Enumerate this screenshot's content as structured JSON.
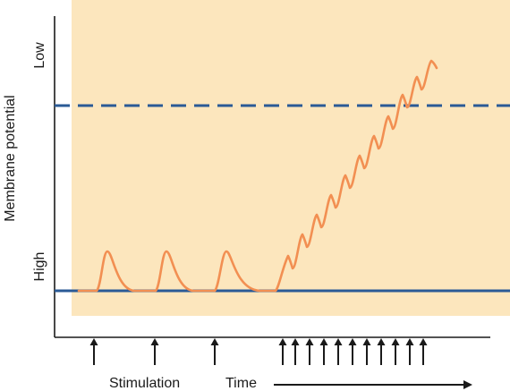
{
  "y_axis": {
    "label": "Membrane potential",
    "top_label": "Low",
    "bottom_label": "High"
  },
  "x_axis": {
    "stimulation_label": "Stimulation",
    "time_label": "Time"
  },
  "colors": {
    "background_panel": "#fce6bd",
    "trace": "#f28f52",
    "resting_line": "#2a5a96",
    "threshold_line": "#2a5a96",
    "axis": "#1a1a1a",
    "arrows": "#1a1a1a"
  },
  "stimuli": {
    "isolated_count": 3,
    "rapid_train_count": 11
  }
}
